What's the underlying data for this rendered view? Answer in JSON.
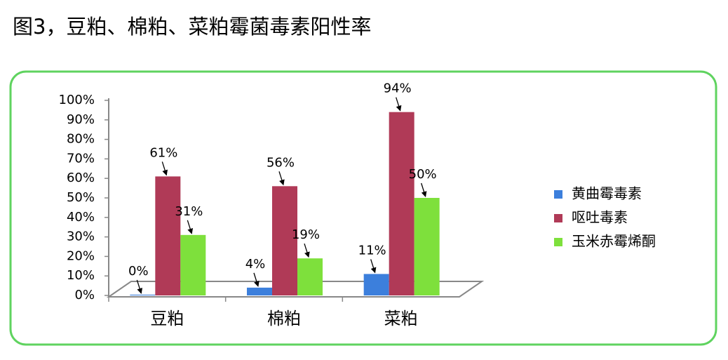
{
  "chart_data": {
    "type": "bar",
    "title": "图3，豆粕、棉粕、菜粕霉菌毒素阳性率",
    "categories": [
      "豆粕",
      "棉粕",
      "菜粕"
    ],
    "series": [
      {
        "name": "黄曲霉毒素",
        "color": "#3c7fdc",
        "values": [
          0.4,
          4,
          11
        ],
        "value_labels": [
          "0%",
          "4%",
          "11%"
        ]
      },
      {
        "name": "呕吐毒素",
        "color": "#b03a57",
        "values": [
          61,
          56,
          94
        ],
        "value_labels": [
          "61%",
          "56%",
          "94%"
        ]
      },
      {
        "name": "玉米赤霉烯酮",
        "color": "#7ee03c",
        "values": [
          31,
          19,
          50
        ],
        "value_labels": [
          "31%",
          "19%",
          "50%"
        ]
      }
    ],
    "ylim": [
      0,
      100
    ],
    "yticks": [
      {
        "value": 0,
        "label": "0%"
      },
      {
        "value": 10,
        "label": "10%"
      },
      {
        "value": 20,
        "label": "20%"
      },
      {
        "value": 30,
        "label": "30%"
      },
      {
        "value": 40,
        "label": "40%"
      },
      {
        "value": 50,
        "label": "50%"
      },
      {
        "value": 60,
        "label": "60%"
      },
      {
        "value": 70,
        "label": "70%"
      },
      {
        "value": 80,
        "label": "80%"
      },
      {
        "value": 90,
        "label": "90%"
      },
      {
        "value": 100,
        "label": "100%"
      }
    ],
    "legend": "right"
  }
}
